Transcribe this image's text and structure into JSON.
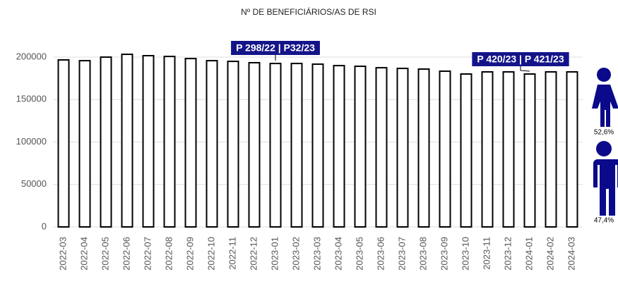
{
  "chart_data": {
    "type": "bar",
    "title": "Nº DE BENEFICIÁRIOS/AS DE RSI",
    "categories": [
      "2022-03",
      "2022-04",
      "2022-05",
      "2022-06",
      "2022-07",
      "2022-08",
      "2022-09",
      "2022-10",
      "2022-11",
      "2022-12",
      "2023-01",
      "2023-02",
      "2023-03",
      "2023-04",
      "2023-05",
      "2023-06",
      "2023-07",
      "2023-08",
      "2023-09",
      "2023-10",
      "2023-11",
      "2023-12",
      "2024-01",
      "2024-02",
      "2024-03"
    ],
    "values": [
      196700,
      195800,
      200000,
      203300,
      201700,
      200800,
      198300,
      195800,
      195000,
      193400,
      192500,
      192500,
      191700,
      190000,
      189200,
      187500,
      186700,
      185900,
      183400,
      180100,
      182600,
      182600,
      180100,
      182600,
      182600
    ],
    "color": "#ffffff",
    "edge_color": "#000000",
    "ylim": [
      0,
      210000
    ],
    "yticks": [
      0,
      50000,
      100000,
      150000,
      200000
    ],
    "grid": true,
    "annotations": [
      {
        "label": "P 298/22 | P32/23",
        "category": "2023-01"
      },
      {
        "label": "P 420/23 | P 421/23",
        "category": "2024-01"
      }
    ],
    "gender_share": [
      {
        "label": "52,6%"
      },
      {
        "label": "47,4%"
      }
    ]
  }
}
